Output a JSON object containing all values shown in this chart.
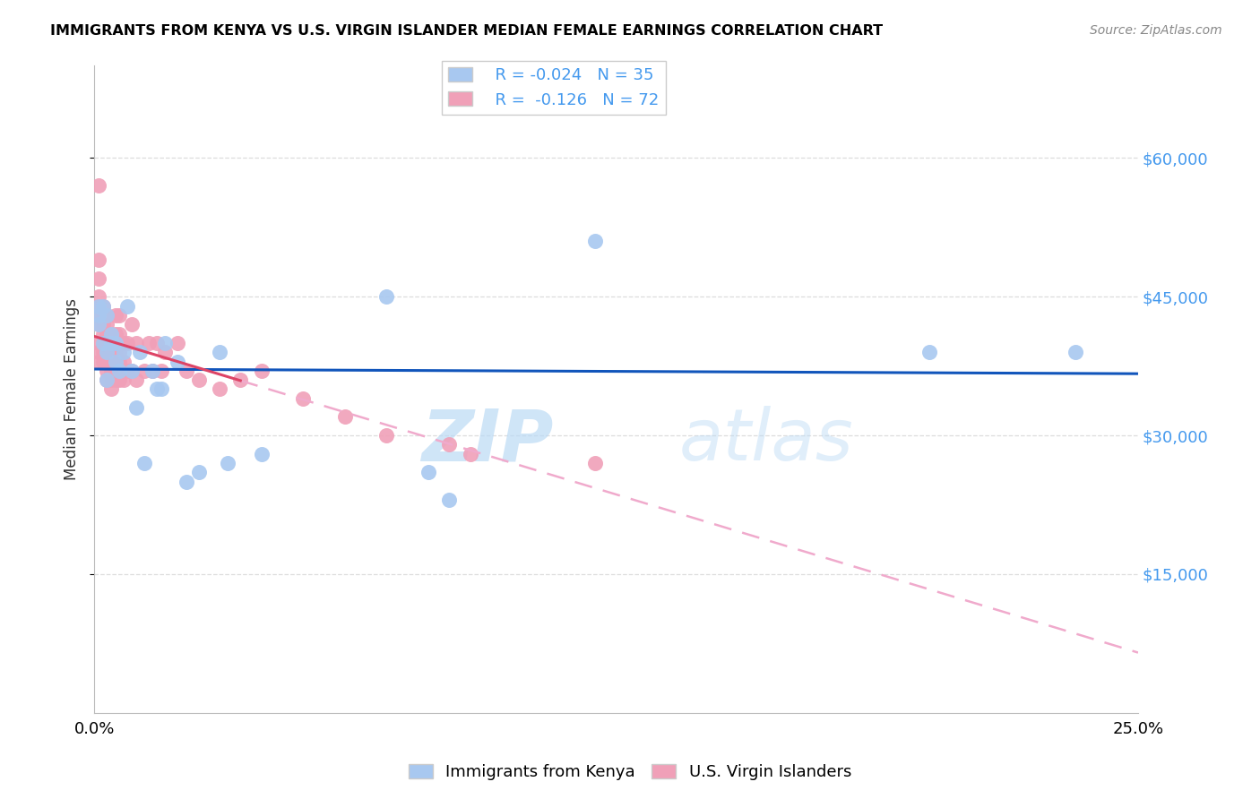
{
  "title": "IMMIGRANTS FROM KENYA VS U.S. VIRGIN ISLANDER MEDIAN FEMALE EARNINGS CORRELATION CHART",
  "source": "Source: ZipAtlas.com",
  "ylabel": "Median Female Earnings",
  "xlim": [
    0.0,
    0.25
  ],
  "ylim": [
    0,
    70000
  ],
  "yticks": [
    15000,
    30000,
    45000,
    60000
  ],
  "ytick_labels": [
    "$15,000",
    "$30,000",
    "$45,000",
    "$60,000"
  ],
  "xticks": [
    0.0,
    0.05,
    0.1,
    0.15,
    0.2,
    0.25
  ],
  "xtick_labels": [
    "0.0%",
    "",
    "",
    "",
    "",
    "25.0%"
  ],
  "kenya_color": "#A8C8F0",
  "virgin_color": "#F0A0B8",
  "kenya_line_color": "#1155BB",
  "virgin_line_solid_color": "#DD4466",
  "virgin_line_dash_color": "#F0AACC",
  "legend_kenya_R": "-0.024",
  "legend_kenya_N": "35",
  "legend_virgin_R": "-0.126",
  "legend_virgin_N": "72",
  "watermark_zip": "ZIP",
  "watermark_atlas": "atlas",
  "background_color": "#FFFFFF",
  "grid_color": "#DDDDDD",
  "kenya_x": [
    0.001,
    0.001,
    0.002,
    0.002,
    0.003,
    0.003,
    0.003,
    0.004,
    0.004,
    0.005,
    0.005,
    0.006,
    0.007,
    0.008,
    0.009,
    0.01,
    0.011,
    0.012,
    0.014,
    0.015,
    0.016,
    0.017,
    0.02,
    0.022,
    0.025,
    0.03,
    0.032,
    0.04,
    0.07,
    0.08,
    0.085,
    0.12,
    0.2,
    0.235,
    0.001
  ],
  "kenya_y": [
    43000,
    42000,
    44000,
    40000,
    43000,
    39000,
    36000,
    41000,
    40000,
    40000,
    38000,
    37000,
    39000,
    44000,
    37000,
    33000,
    39000,
    27000,
    37000,
    35000,
    35000,
    40000,
    38000,
    25000,
    26000,
    39000,
    27000,
    28000,
    45000,
    26000,
    23000,
    51000,
    39000,
    39000,
    44000
  ],
  "virgin_x": [
    0.001,
    0.001,
    0.001,
    0.001,
    0.001,
    0.001,
    0.001,
    0.002,
    0.002,
    0.002,
    0.002,
    0.002,
    0.002,
    0.002,
    0.003,
    0.003,
    0.003,
    0.003,
    0.003,
    0.003,
    0.003,
    0.003,
    0.004,
    0.004,
    0.004,
    0.004,
    0.004,
    0.004,
    0.004,
    0.005,
    0.005,
    0.005,
    0.005,
    0.005,
    0.005,
    0.005,
    0.006,
    0.006,
    0.006,
    0.006,
    0.006,
    0.006,
    0.007,
    0.007,
    0.007,
    0.008,
    0.008,
    0.009,
    0.009,
    0.01,
    0.01,
    0.012,
    0.013,
    0.014,
    0.015,
    0.016,
    0.017,
    0.02,
    0.022,
    0.025,
    0.03,
    0.035,
    0.04,
    0.05,
    0.06,
    0.07,
    0.085,
    0.09,
    0.12,
    0.001,
    0.001,
    0.001
  ],
  "virgin_y": [
    57000,
    49000,
    47000,
    45000,
    44000,
    43000,
    42000,
    44000,
    43000,
    42000,
    41000,
    40000,
    39000,
    38000,
    43000,
    42000,
    41000,
    40000,
    39000,
    38000,
    37000,
    36000,
    41000,
    40000,
    39000,
    38000,
    37000,
    36000,
    35000,
    43000,
    41000,
    40000,
    39000,
    38000,
    37000,
    36000,
    43000,
    41000,
    40000,
    39000,
    38000,
    36000,
    40000,
    38000,
    36000,
    40000,
    37000,
    42000,
    37000,
    40000,
    36000,
    37000,
    40000,
    37000,
    40000,
    37000,
    39000,
    40000,
    37000,
    36000,
    35000,
    36000,
    37000,
    34000,
    32000,
    30000,
    29000,
    28000,
    27000,
    40000,
    39000,
    38000
  ]
}
